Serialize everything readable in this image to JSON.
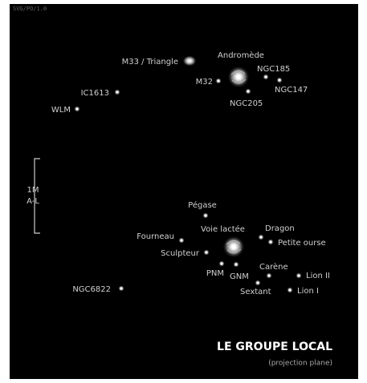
{
  "header": {
    "code": "SVG/PO/1.0"
  },
  "scale": {
    "lines": [
      "1M",
      "A-L"
    ]
  },
  "labels": [
    "M33 / Triangle",
    "Andromède",
    "NGC185",
    "NGC147",
    "M32",
    "NGC205",
    "IC1613",
    "WLM",
    "Pégase",
    "Voie lactée",
    "Dragon",
    "Petite ourse",
    "Fourneau",
    "Sculpteur",
    "Carène",
    "PNM",
    "GNM",
    "Lion II",
    "NGC6822",
    "Sextant",
    "Lion I"
  ],
  "title": "LE GROUPE LOCAL",
  "subtitle": "(projection plane)"
}
